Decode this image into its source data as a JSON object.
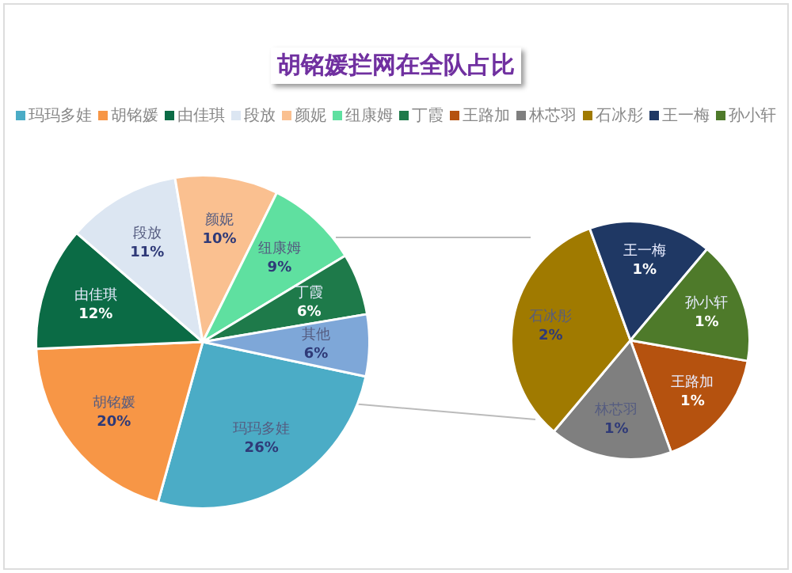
{
  "chart_data": [
    {
      "type": "pie",
      "title": "胡铭媛拦网在全队占比",
      "legend": "top",
      "categories": [
        "玛玛多娃",
        "胡铭媛",
        "由佳琪",
        "段放",
        "颜妮",
        "纽康姆",
        "丁霞",
        "其他"
      ],
      "values": [
        26,
        20,
        12,
        11,
        10,
        9,
        6,
        6
      ],
      "value_labels": [
        "26%",
        "20%",
        "12%",
        "11%",
        "10%",
        "9%",
        "6%",
        "6%"
      ],
      "colors": [
        "#4bacc6",
        "#f79646",
        "#0b6b45",
        "#dce6f2",
        "#fac090",
        "#5fe0a0",
        "#1e7a4a",
        "#7ea7d8"
      ]
    },
    {
      "type": "pie",
      "legend": "top",
      "categories": [
        "王路加",
        "林芯羽",
        "石冰彤",
        "王一梅",
        "孙小轩"
      ],
      "values": [
        1,
        1,
        2,
        1,
        1
      ],
      "value_labels": [
        "1%",
        "1%",
        "2%",
        "1%",
        "1%"
      ],
      "colors": [
        "#b5520f",
        "#7f7f7f",
        "#a07a00",
        "#1f3864",
        "#4e7a2a"
      ]
    }
  ]
}
